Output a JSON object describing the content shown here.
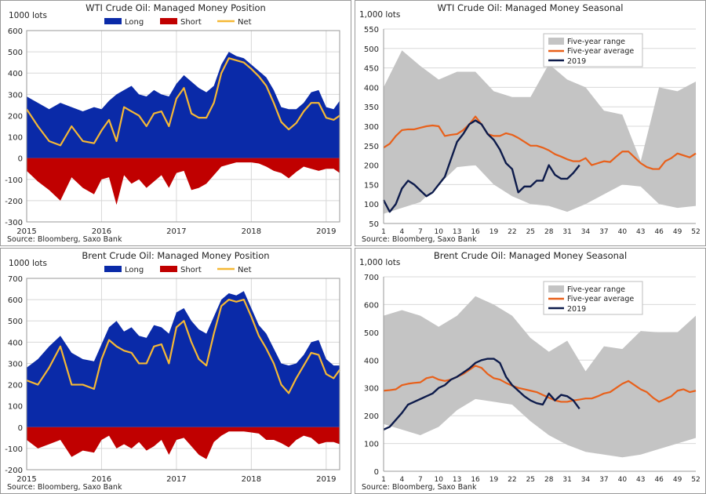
{
  "colors": {
    "long": "#0a2aa8",
    "short": "#c00000",
    "net": "#f5b835",
    "range": "#c4c4c4",
    "average": "#e8601a",
    "y2019": "#0d1b4b",
    "grid": "#d8d8d8"
  },
  "chart_data": [
    {
      "type": "area",
      "title": "WTI Crude Oil: Managed Money Position",
      "unit_label": "1000 lots",
      "source": "Source: Bloomberg, Saxo Bank",
      "legend": [
        "Long",
        "Short",
        "Net"
      ],
      "legend_position": "top",
      "ylim": [
        -300,
        600
      ],
      "yticks": [
        "600",
        "500",
        "400",
        "300",
        "200",
        "100",
        "0",
        "-100",
        "-200",
        "-300"
      ],
      "x_labels": [
        "2015",
        "2016",
        "2017",
        "2018",
        "2019"
      ],
      "xlim": [
        2015.0,
        2019.18
      ],
      "x": [
        2015.0,
        2015.15,
        2015.3,
        2015.45,
        2015.6,
        2015.75,
        2015.9,
        2016.0,
        2016.1,
        2016.2,
        2016.3,
        2016.4,
        2016.5,
        2016.6,
        2016.7,
        2016.8,
        2016.9,
        2017.0,
        2017.1,
        2017.2,
        2017.3,
        2017.4,
        2017.5,
        2017.6,
        2017.7,
        2017.8,
        2017.9,
        2018.0,
        2018.1,
        2018.2,
        2018.3,
        2018.4,
        2018.5,
        2018.6,
        2018.7,
        2018.8,
        2018.9,
        2019.0,
        2019.1,
        2019.18
      ],
      "series": [
        {
          "name": "Long",
          "values": [
            290,
            260,
            230,
            260,
            240,
            220,
            240,
            230,
            270,
            300,
            320,
            340,
            300,
            290,
            320,
            300,
            290,
            350,
            390,
            360,
            330,
            310,
            340,
            440,
            500,
            480,
            470,
            440,
            410,
            380,
            320,
            240,
            230,
            230,
            260,
            310,
            320,
            240,
            230,
            270
          ]
        },
        {
          "name": "Short",
          "values": [
            -60,
            -110,
            -150,
            -200,
            -90,
            -140,
            -170,
            -100,
            -90,
            -220,
            -80,
            -120,
            -100,
            -140,
            -110,
            -80,
            -140,
            -70,
            -60,
            -150,
            -140,
            -120,
            -80,
            -40,
            -30,
            -20,
            -20,
            -20,
            -25,
            -40,
            -60,
            -70,
            -95,
            -65,
            -40,
            -50,
            -60,
            -50,
            -50,
            -70
          ]
        },
        {
          "name": "Net",
          "values": [
            230,
            150,
            80,
            60,
            150,
            80,
            70,
            130,
            180,
            80,
            240,
            220,
            200,
            150,
            210,
            220,
            150,
            280,
            330,
            210,
            190,
            190,
            260,
            400,
            470,
            460,
            450,
            420,
            385,
            340,
            260,
            170,
            135,
            165,
            220,
            260,
            260,
            190,
            180,
            200
          ]
        }
      ]
    },
    {
      "type": "line",
      "title": "WTI Crude Oil: Managed Money Seasonal",
      "unit_label": "1,000 lots",
      "source": "Source: Bloomberg, Saxo Bank",
      "legend": [
        "Five-year range",
        "Five-year average",
        "2019"
      ],
      "legend_position": "top-center",
      "ylim": [
        50,
        550
      ],
      "yticks": [
        "550",
        "500",
        "450",
        "400",
        "350",
        "300",
        "250",
        "200",
        "150",
        "100",
        "50"
      ],
      "x_ticks": [
        "1",
        "4",
        "7",
        "10",
        "13",
        "16",
        "19",
        "22",
        "25",
        "28",
        "31",
        "34",
        "37",
        "40",
        "43",
        "46",
        "49",
        "52"
      ],
      "xlim": [
        1,
        52
      ],
      "range_x": [
        1,
        4,
        7,
        10,
        13,
        16,
        19,
        22,
        25,
        28,
        31,
        34,
        37,
        40,
        43,
        46,
        49,
        52
      ],
      "range_upper": [
        400,
        495,
        455,
        420,
        440,
        440,
        390,
        375,
        375,
        460,
        420,
        400,
        340,
        330,
        210,
        400,
        390,
        415
      ],
      "range_lower": [
        75,
        90,
        105,
        150,
        195,
        200,
        150,
        120,
        100,
        95,
        80,
        100,
        125,
        150,
        145,
        100,
        90,
        95
      ],
      "average_x": [
        1,
        2,
        3,
        4,
        5,
        6,
        7,
        8,
        9,
        10,
        11,
        12,
        13,
        14,
        15,
        16,
        17,
        18,
        19,
        20,
        21,
        22,
        23,
        24,
        25,
        26,
        27,
        28,
        29,
        30,
        31,
        32,
        33,
        34,
        35,
        36,
        37,
        38,
        39,
        40,
        41,
        42,
        43,
        44,
        45,
        46,
        47,
        48,
        49,
        50,
        51,
        52
      ],
      "average": [
        245,
        255,
        275,
        290,
        292,
        292,
        296,
        300,
        302,
        300,
        275,
        278,
        280,
        290,
        305,
        325,
        305,
        280,
        275,
        275,
        282,
        278,
        270,
        260,
        250,
        250,
        245,
        238,
        228,
        222,
        215,
        210,
        210,
        218,
        200,
        205,
        210,
        208,
        222,
        235,
        235,
        220,
        205,
        195,
        190,
        190,
        210,
        218,
        230,
        225,
        220,
        230
      ],
      "y2019_x": [
        1,
        2,
        3,
        4,
        5,
        6,
        7,
        8,
        9,
        10,
        11,
        12,
        13,
        14,
        15,
        16,
        17,
        18,
        19,
        20,
        21,
        22,
        23,
        24,
        25,
        26,
        27,
        28,
        29,
        30,
        31,
        32,
        33
      ],
      "y2019": [
        110,
        80,
        100,
        140,
        160,
        150,
        135,
        120,
        130,
        150,
        170,
        215,
        260,
        280,
        305,
        315,
        305,
        280,
        265,
        240,
        205,
        190,
        130,
        145,
        145,
        160,
        160,
        200,
        175,
        165,
        165,
        180,
        200
      ]
    },
    {
      "type": "area",
      "title": "Brent Crude Oil: Managed Money Position",
      "unit_label": "1000 lots",
      "source": "Source: Bloomberg, Saxo Bank",
      "legend": [
        "Long",
        "Short",
        "Net"
      ],
      "legend_position": "top",
      "ylim": [
        -200,
        700
      ],
      "yticks": [
        "700",
        "600",
        "500",
        "400",
        "300",
        "200",
        "100",
        "0",
        "-100",
        "-200"
      ],
      "x_labels": [
        "2015",
        "2016",
        "2017",
        "2018",
        "2019"
      ],
      "xlim": [
        2015.0,
        2019.18
      ],
      "x": [
        2015.0,
        2015.15,
        2015.3,
        2015.45,
        2015.6,
        2015.75,
        2015.9,
        2016.0,
        2016.1,
        2016.2,
        2016.3,
        2016.4,
        2016.5,
        2016.6,
        2016.7,
        2016.8,
        2016.9,
        2017.0,
        2017.1,
        2017.2,
        2017.3,
        2017.4,
        2017.5,
        2017.6,
        2017.7,
        2017.8,
        2017.9,
        2018.0,
        2018.1,
        2018.2,
        2018.3,
        2018.4,
        2018.5,
        2018.6,
        2018.7,
        2018.8,
        2018.9,
        2019.0,
        2019.1,
        2019.18
      ],
      "series": [
        {
          "name": "Long",
          "values": [
            280,
            320,
            380,
            430,
            350,
            320,
            310,
            390,
            470,
            500,
            450,
            470,
            430,
            420,
            480,
            470,
            440,
            540,
            560,
            500,
            460,
            440,
            520,
            600,
            630,
            620,
            640,
            560,
            480,
            440,
            370,
            300,
            290,
            300,
            340,
            400,
            410,
            320,
            290,
            290
          ]
        },
        {
          "name": "Short",
          "values": [
            -60,
            -100,
            -80,
            -60,
            -140,
            -110,
            -120,
            -60,
            -40,
            -100,
            -80,
            -100,
            -70,
            -110,
            -90,
            -60,
            -130,
            -60,
            -50,
            -90,
            -130,
            -150,
            -70,
            -40,
            -20,
            -20,
            -20,
            -25,
            -30,
            -60,
            -60,
            -75,
            -95,
            -60,
            -40,
            -50,
            -80,
            -70,
            -70,
            -80
          ]
        },
        {
          "name": "Net",
          "values": [
            220,
            200,
            280,
            380,
            200,
            200,
            180,
            320,
            410,
            380,
            360,
            350,
            300,
            300,
            380,
            390,
            300,
            470,
            500,
            400,
            320,
            290,
            440,
            570,
            600,
            590,
            600,
            520,
            430,
            370,
            300,
            200,
            160,
            230,
            290,
            350,
            340,
            250,
            230,
            270
          ]
        }
      ]
    },
    {
      "type": "line",
      "title": "Brent Crude Oil: Managed Money Seasonal",
      "unit_label": "1,000 lots",
      "source": "Source: Bloomberg, Saxo Bank",
      "legend": [
        "Five-year range",
        "Five-year average",
        "2019"
      ],
      "legend_position": "top-center",
      "ylim": [
        0,
        700
      ],
      "yticks": [
        "700",
        "600",
        "500",
        "400",
        "300",
        "200",
        "100",
        "0"
      ],
      "x_ticks": [
        "1",
        "4",
        "7",
        "10",
        "13",
        "16",
        "19",
        "22",
        "25",
        "28",
        "31",
        "34",
        "37",
        "40",
        "43",
        "46",
        "49",
        "52"
      ],
      "xlim": [
        1,
        52
      ],
      "range_x": [
        1,
        4,
        7,
        10,
        13,
        16,
        19,
        22,
        25,
        28,
        31,
        34,
        37,
        40,
        43,
        46,
        49,
        52
      ],
      "range_upper": [
        560,
        580,
        560,
        520,
        560,
        630,
        600,
        560,
        480,
        430,
        470,
        360,
        450,
        440,
        505,
        500,
        500,
        560
      ],
      "range_lower": [
        170,
        150,
        130,
        160,
        220,
        260,
        250,
        240,
        180,
        130,
        95,
        70,
        60,
        50,
        60,
        80,
        100,
        120
      ],
      "average_x": [
        1,
        2,
        3,
        4,
        5,
        6,
        7,
        8,
        9,
        10,
        11,
        12,
        13,
        14,
        15,
        16,
        17,
        18,
        19,
        20,
        21,
        22,
        23,
        24,
        25,
        26,
        27,
        28,
        29,
        30,
        31,
        32,
        33,
        34,
        35,
        36,
        37,
        38,
        39,
        40,
        41,
        42,
        43,
        44,
        45,
        46,
        47,
        48,
        49,
        50,
        51,
        52
      ],
      "average": [
        290,
        292,
        295,
        310,
        315,
        318,
        320,
        335,
        340,
        330,
        325,
        330,
        340,
        350,
        365,
        380,
        372,
        350,
        335,
        330,
        318,
        308,
        300,
        295,
        290,
        285,
        275,
        265,
        255,
        250,
        250,
        255,
        258,
        262,
        262,
        270,
        280,
        285,
        300,
        315,
        325,
        310,
        295,
        285,
        265,
        250,
        260,
        270,
        290,
        295,
        285,
        290
      ],
      "y2019_x": [
        1,
        2,
        3,
        4,
        5,
        6,
        7,
        8,
        9,
        10,
        11,
        12,
        13,
        14,
        15,
        16,
        17,
        18,
        19,
        20,
        21,
        22,
        23,
        24,
        25,
        26,
        27,
        28,
        29,
        30,
        31,
        32,
        33
      ],
      "y2019": [
        150,
        160,
        185,
        210,
        240,
        250,
        260,
        270,
        280,
        300,
        310,
        330,
        340,
        355,
        370,
        390,
        400,
        405,
        405,
        390,
        340,
        310,
        290,
        270,
        255,
        245,
        240,
        280,
        255,
        275,
        270,
        255,
        225
      ]
    }
  ]
}
